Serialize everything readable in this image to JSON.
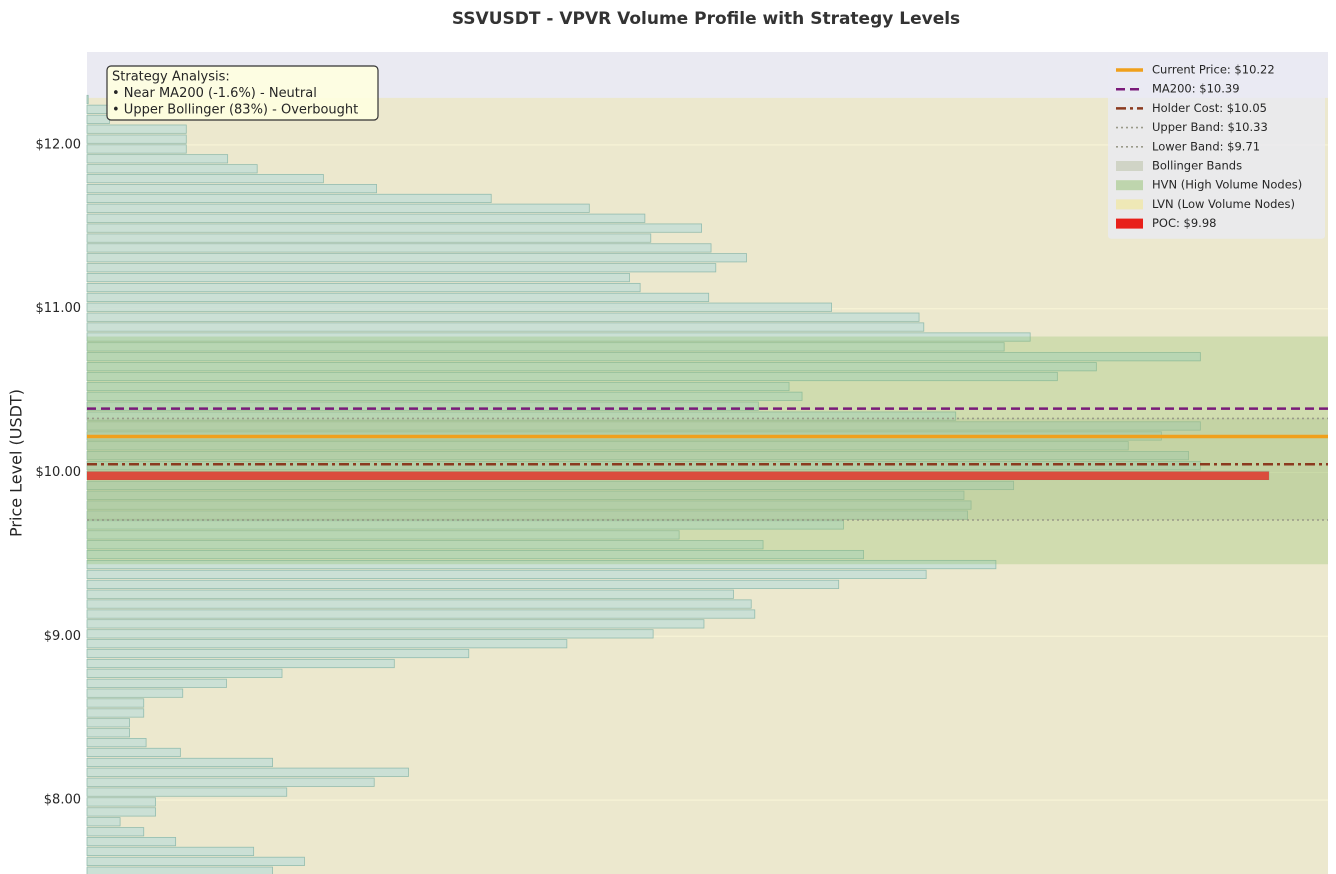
{
  "chart_data": {
    "type": "bar",
    "orientation": "horizontal",
    "title": "SSVUSDT - VPVR Volume Profile with Strategy Levels",
    "ylabel": "Price Level (USDT)",
    "ylim": [
      7.549,
      12.567
    ],
    "xlim": [
      0,
      105
    ],
    "yticks": [
      {
        "value": 8,
        "label": "$8.00"
      },
      {
        "value": 9,
        "label": "$9.00"
      },
      {
        "value": 10,
        "label": "$10.00"
      },
      {
        "value": 11,
        "label": "$11.00"
      },
      {
        "value": 12,
        "label": "$12.00"
      }
    ],
    "grid": true,
    "color": "#c6ded6",
    "edgecolor": "#93bcae",
    "y": [
      12.277,
      12.217,
      12.156,
      12.096,
      12.035,
      11.975,
      11.915,
      11.854,
      11.794,
      11.733,
      11.673,
      11.613,
      11.552,
      11.492,
      11.431,
      11.371,
      11.311,
      11.25,
      11.19,
      11.129,
      11.069,
      11.009,
      10.948,
      10.888,
      10.827,
      10.767,
      10.707,
      10.646,
      10.586,
      10.525,
      10.465,
      10.405,
      10.344,
      10.284,
      10.223,
      10.163,
      10.103,
      10.042,
      9.982,
      9.921,
      9.861,
      9.801,
      9.74,
      9.68,
      9.619,
      9.559,
      9.499,
      9.438,
      9.378,
      9.317,
      9.257,
      9.197,
      9.136,
      9.076,
      9.015,
      8.955,
      8.895,
      8.834,
      8.774,
      8.713,
      8.653,
      8.593,
      8.532,
      8.472,
      8.411,
      8.351,
      8.291,
      8.23,
      8.17,
      8.109,
      8.049,
      7.989,
      7.928,
      7.868,
      7.807,
      7.747,
      7.687,
      7.626,
      7.566
    ],
    "values": [
      0.1,
      1.9,
      1.9,
      8.4,
      8.4,
      8.4,
      11.9,
      14.4,
      20.0,
      24.5,
      34.2,
      42.5,
      47.2,
      52.0,
      47.7,
      52.8,
      55.8,
      53.2,
      45.9,
      46.8,
      52.6,
      63.0,
      70.4,
      70.8,
      79.8,
      77.6,
      94.2,
      85.4,
      82.1,
      59.4,
      60.5,
      56.8,
      73.5,
      94.2,
      90.9,
      88.1,
      93.2,
      94.2,
      100.0,
      78.4,
      74.2,
      74.8,
      74.5,
      64.0,
      50.1,
      57.2,
      65.7,
      76.9,
      71.0,
      63.6,
      54.7,
      56.2,
      56.5,
      52.2,
      47.9,
      40.6,
      32.3,
      26.0,
      16.5,
      11.8,
      8.1,
      4.8,
      4.8,
      3.6,
      3.6,
      5.0,
      7.9,
      15.7,
      27.2,
      24.3,
      16.9,
      5.8,
      5.8,
      2.8,
      4.8,
      7.5,
      14.1,
      18.4,
      15.7
    ],
    "lines": [
      {
        "name": "Current Price: $10.22",
        "value": 10.22,
        "color": "#f0a01c",
        "style": "solid",
        "width": 3.5
      },
      {
        "name": "MA200: $10.39",
        "value": 10.39,
        "color": "#7a1a7a",
        "style": "dashed",
        "width": 2.5
      },
      {
        "name": "Holder Cost: $10.05",
        "value": 10.05,
        "color": "#8b3a1e",
        "style": "dashdot",
        "width": 2.5
      },
      {
        "name": "Upper Band: $10.33",
        "value": 10.33,
        "color": "#9a9a8a",
        "style": "dotted",
        "width": 1.6
      },
      {
        "name": "Lower Band: $9.71",
        "value": 9.71,
        "color": "#9a9a8a",
        "style": "dotted",
        "width": 1.6
      }
    ],
    "zones": [
      {
        "name": "Bollinger Bands",
        "range": [
          9.71,
          10.33
        ],
        "color": "#b4bc9c",
        "opacity": 0.3
      },
      {
        "name": "HVN (High Volume Nodes)",
        "range": [
          9.44,
          10.83
        ],
        "color": "#8fbf68",
        "opacity": 0.3
      },
      {
        "name": "LVN (Low Volume Nodes)",
        "range": [
          7.549,
          12.287
        ],
        "color": "#f2e68c",
        "opacity": 0.35
      }
    ],
    "poc": {
      "name": "POC: $9.98",
      "value": 9.98,
      "color": "#e8201a",
      "opacity": 0.75
    },
    "legend": "upper right",
    "annotation": [
      "Strategy Analysis:",
      "• Near MA200 (-1.6%) - Neutral",
      "• Upper Bollinger (83%) - Overbought"
    ]
  }
}
